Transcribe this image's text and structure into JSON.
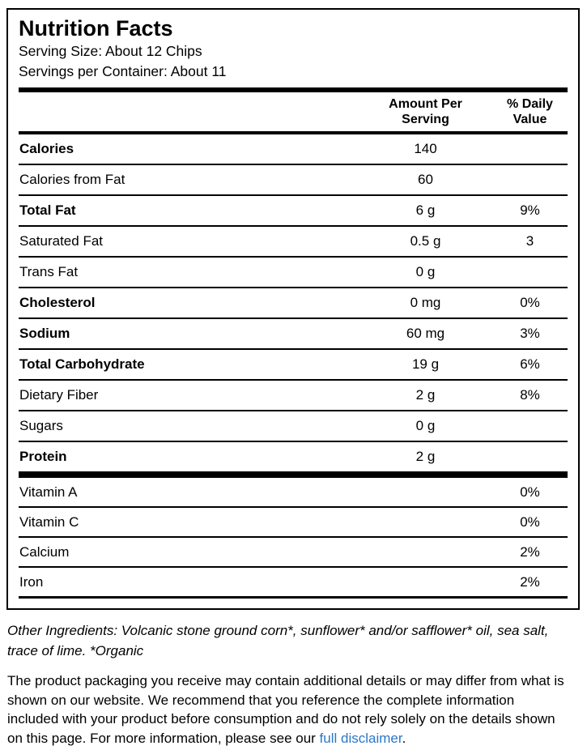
{
  "label": {
    "title": "Nutrition Facts",
    "serving_size": "Serving Size: About 12 Chips",
    "servings_per_container": "Servings per Container: About 11",
    "columns": {
      "amount_line1": "Amount Per",
      "amount_line2": "Serving",
      "dv_line1": "% Daily",
      "dv_line2": "Value"
    },
    "rows": [
      {
        "name": "Calories",
        "amount": "140",
        "dv": ""
      },
      {
        "name": "Calories from Fat",
        "amount": "60",
        "dv": ""
      },
      {
        "name": "Total Fat",
        "amount": "6 g",
        "dv": "9%"
      },
      {
        "name": "Saturated Fat",
        "amount": "0.5 g",
        "dv": "3"
      },
      {
        "name": "Trans Fat",
        "amount": "0 g",
        "dv": ""
      },
      {
        "name": "Cholesterol",
        "amount": "0 mg",
        "dv": "0%"
      },
      {
        "name": "Sodium",
        "amount": "60 mg",
        "dv": "3%"
      },
      {
        "name": "Total Carbohydrate",
        "amount": "19 g",
        "dv": "6%"
      },
      {
        "name": "Dietary Fiber",
        "amount": "2 g",
        "dv": "8%"
      },
      {
        "name": "Sugars",
        "amount": "0 g",
        "dv": ""
      },
      {
        "name": "Protein",
        "amount": "2 g",
        "dv": ""
      }
    ],
    "vitamins": [
      {
        "name": "Vitamin A",
        "dv": "0%"
      },
      {
        "name": "Vitamin C",
        "dv": "0%"
      },
      {
        "name": "Calcium",
        "dv": "2%"
      },
      {
        "name": "Iron",
        "dv": "2%"
      }
    ]
  },
  "footer": {
    "ingredients": "Other Ingredients: Volcanic stone ground corn*, sunflower* and/or safflower* oil, sea salt, trace of lime. *Organic",
    "disclaimer_text": "The product packaging you receive may contain additional details or may differ from what is shown on our website. We recommend that you reference the complete information included with your product before consumption and do not rely solely on the details shown on this page. For more information, please see our ",
    "disclaimer_link": "full disclaimer",
    "disclaimer_period": "."
  },
  "colors": {
    "link_blue": "#2a77c9"
  }
}
